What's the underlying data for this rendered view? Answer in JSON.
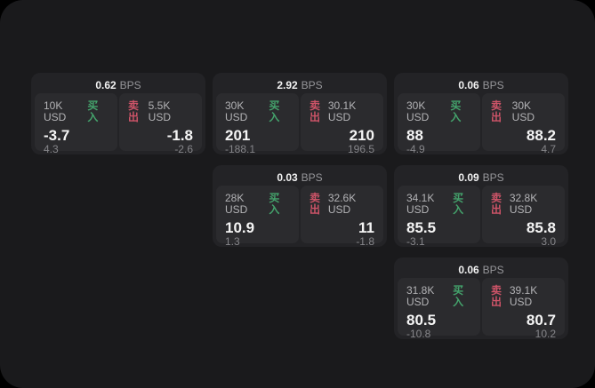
{
  "labels": {
    "bps_unit": "BPS",
    "buy": "买入",
    "sell": "卖出"
  },
  "theme": {
    "page_bg": "#000000",
    "panel_bg": "#1a1a1c",
    "card_bg": "#232326",
    "tile_bg": "#2b2b2e",
    "text_primary": "#f5f5f5",
    "text_secondary": "#b3b3b6",
    "text_dim": "#86868a",
    "buy_color": "#44a36c",
    "sell_color": "#ce5468"
  },
  "cards": [
    {
      "bps": "0.62",
      "buy": {
        "size": "10K USD",
        "value": "-3.7",
        "delta": "4.3"
      },
      "sell": {
        "size": "5.5K USD",
        "value": "-1.8",
        "delta": "-2.6"
      }
    },
    {
      "bps": "2.92",
      "buy": {
        "size": "30K USD",
        "value": "201",
        "delta": "-188.1"
      },
      "sell": {
        "size": "30.1K USD",
        "value": "210",
        "delta": "196.5"
      }
    },
    {
      "bps": "0.06",
      "buy": {
        "size": "30K USD",
        "value": "88",
        "delta": "-4.9"
      },
      "sell": {
        "size": "30K USD",
        "value": "88.2",
        "delta": "4.7"
      }
    },
    {
      "bps": "0.03",
      "buy": {
        "size": "28K USD",
        "value": "10.9",
        "delta": "1.3"
      },
      "sell": {
        "size": "32.6K USD",
        "value": "11",
        "delta": "-1.8"
      }
    },
    {
      "bps": "0.09",
      "buy": {
        "size": "34.1K USD",
        "value": "85.5",
        "delta": "-3.1"
      },
      "sell": {
        "size": "32.8K USD",
        "value": "85.8",
        "delta": "3.0"
      }
    },
    {
      "bps": "0.06",
      "buy": {
        "size": "31.8K USD",
        "value": "80.5",
        "delta": "-10.8"
      },
      "sell": {
        "size": "39.1K USD",
        "value": "80.7",
        "delta": "10.2"
      }
    }
  ]
}
